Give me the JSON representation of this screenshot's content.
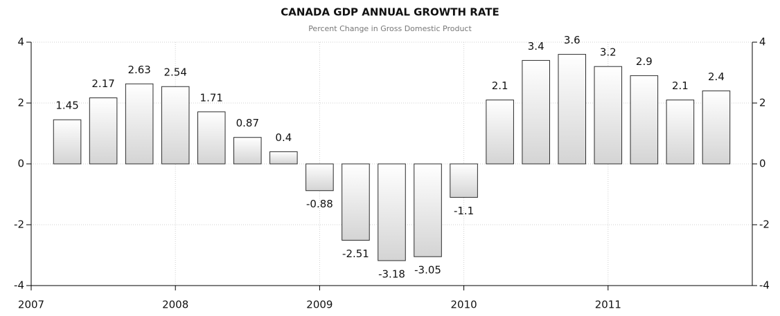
{
  "chart_data": {
    "type": "bar",
    "title": "CANADA GDP ANNUAL GROWTH RATE",
    "subtitle": "Percent Change in Gross Domestic Product",
    "x": [
      2007.25,
      2007.5,
      2007.75,
      2008,
      2008.25,
      2008.5,
      2008.75,
      2009,
      2009.25,
      2009.5,
      2009.75,
      2010,
      2010.25,
      2010.5,
      2010.75,
      2011,
      2011.25,
      2011.5,
      2011.75
    ],
    "values": [
      1.45,
      2.17,
      2.63,
      2.54,
      1.71,
      0.87,
      0.4,
      -0.88,
      -2.51,
      -3.18,
      -3.05,
      -1.1,
      2.1,
      3.4,
      3.6,
      3.2,
      2.9,
      2.1,
      2.4
    ],
    "color": "#d4d4d4",
    "edge_color": "#2b2b2b",
    "xlim": [
      2007,
      2012
    ],
    "xticks": [
      2007,
      2008,
      2009,
      2010,
      2011
    ],
    "ylim": [
      -4,
      4
    ],
    "yticks": [
      -4,
      -2,
      0,
      2,
      4
    ],
    "grid": true
  }
}
